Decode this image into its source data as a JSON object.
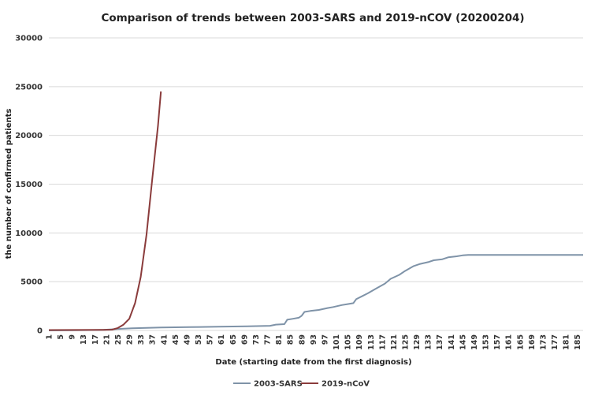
{
  "chart_data": {
    "type": "line",
    "title": "Comparison of trends between 2003-SARS and 2019-nCOV (20200204)",
    "xlabel": "Date (starting date from the first diagnosis)",
    "ylabel": "the number of confirmed patients",
    "ylim": [
      0,
      30000
    ],
    "yticks": [
      0,
      5000,
      10000,
      15000,
      20000,
      25000,
      30000
    ],
    "xlim": [
      1,
      187
    ],
    "xticks": [
      1,
      5,
      9,
      13,
      17,
      21,
      25,
      29,
      33,
      37,
      41,
      45,
      49,
      53,
      57,
      61,
      65,
      69,
      73,
      77,
      81,
      85,
      89,
      93,
      97,
      101,
      105,
      109,
      113,
      117,
      121,
      125,
      129,
      133,
      137,
      141,
      145,
      149,
      153,
      157,
      161,
      165,
      169,
      173,
      177,
      181,
      185
    ],
    "grid": "horizontal",
    "legend_position": "bottom",
    "series": [
      {
        "name": "2003-SARS",
        "color": "#7f93a8",
        "x": [
          1,
          10,
          20,
          25,
          30,
          40,
          50,
          60,
          70,
          78,
          80,
          83,
          84,
          86,
          88,
          89,
          90,
          92,
          95,
          98,
          100,
          103,
          105,
          107,
          108,
          110,
          112,
          115,
          118,
          120,
          123,
          125,
          128,
          130,
          133,
          135,
          138,
          140,
          143,
          145,
          147,
          150,
          160,
          170,
          180,
          187
        ],
        "y": [
          0,
          20,
          60,
          150,
          220,
          300,
          340,
          380,
          420,
          480,
          600,
          650,
          1100,
          1200,
          1300,
          1500,
          1900,
          2000,
          2100,
          2300,
          2400,
          2600,
          2700,
          2800,
          3200,
          3500,
          3800,
          4300,
          4800,
          5300,
          5700,
          6100,
          6600,
          6800,
          7000,
          7200,
          7300,
          7500,
          7600,
          7700,
          7750,
          7750,
          7750,
          7750,
          7750,
          7750
        ]
      },
      {
        "name": "2019-nCoV",
        "color": "#8a3b3b",
        "x": [
          1,
          10,
          20,
          23,
          25,
          27,
          29,
          31,
          33,
          35,
          37,
          39,
          40
        ],
        "y": [
          40,
          50,
          60,
          80,
          250,
          600,
          1200,
          2800,
          5500,
          9800,
          15500,
          21000,
          24500
        ]
      }
    ]
  }
}
